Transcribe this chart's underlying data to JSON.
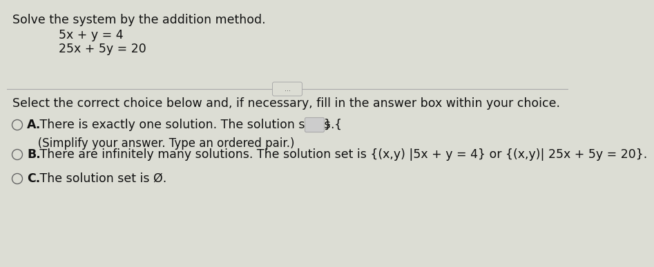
{
  "title_line": "Solve the system by the addition method.",
  "eq1": "5x + y = 4",
  "eq2": "25x + 5y = 20",
  "divider_dots": "...",
  "select_line": "Select the correct choice below and, if necessary, fill in the answer box within your choice.",
  "choice_A_bold": "A.",
  "choice_A_text1": " There is exactly one solution. The solution set is {",
  "choice_A_text2": "}.",
  "choice_A_sub": "   (Simplify your answer. Type an ordered pair.)",
  "choice_B_bold": "B.",
  "choice_B_text": " There are infinitely many solutions. The solution set is {(x,y) |5x + y = 4} or {(x,y)| 25x + 5y = 20}.",
  "choice_C_bold": "C.",
  "choice_C_text": " The solution set is Ø.",
  "bg_color": "#dcddd4",
  "bg_color_upper": "#dcddd4",
  "text_color": "#111111",
  "circle_color": "#666666",
  "divider_color": "#aaaaaa",
  "font_size_main": 12.5,
  "font_size_choices": 12.5
}
